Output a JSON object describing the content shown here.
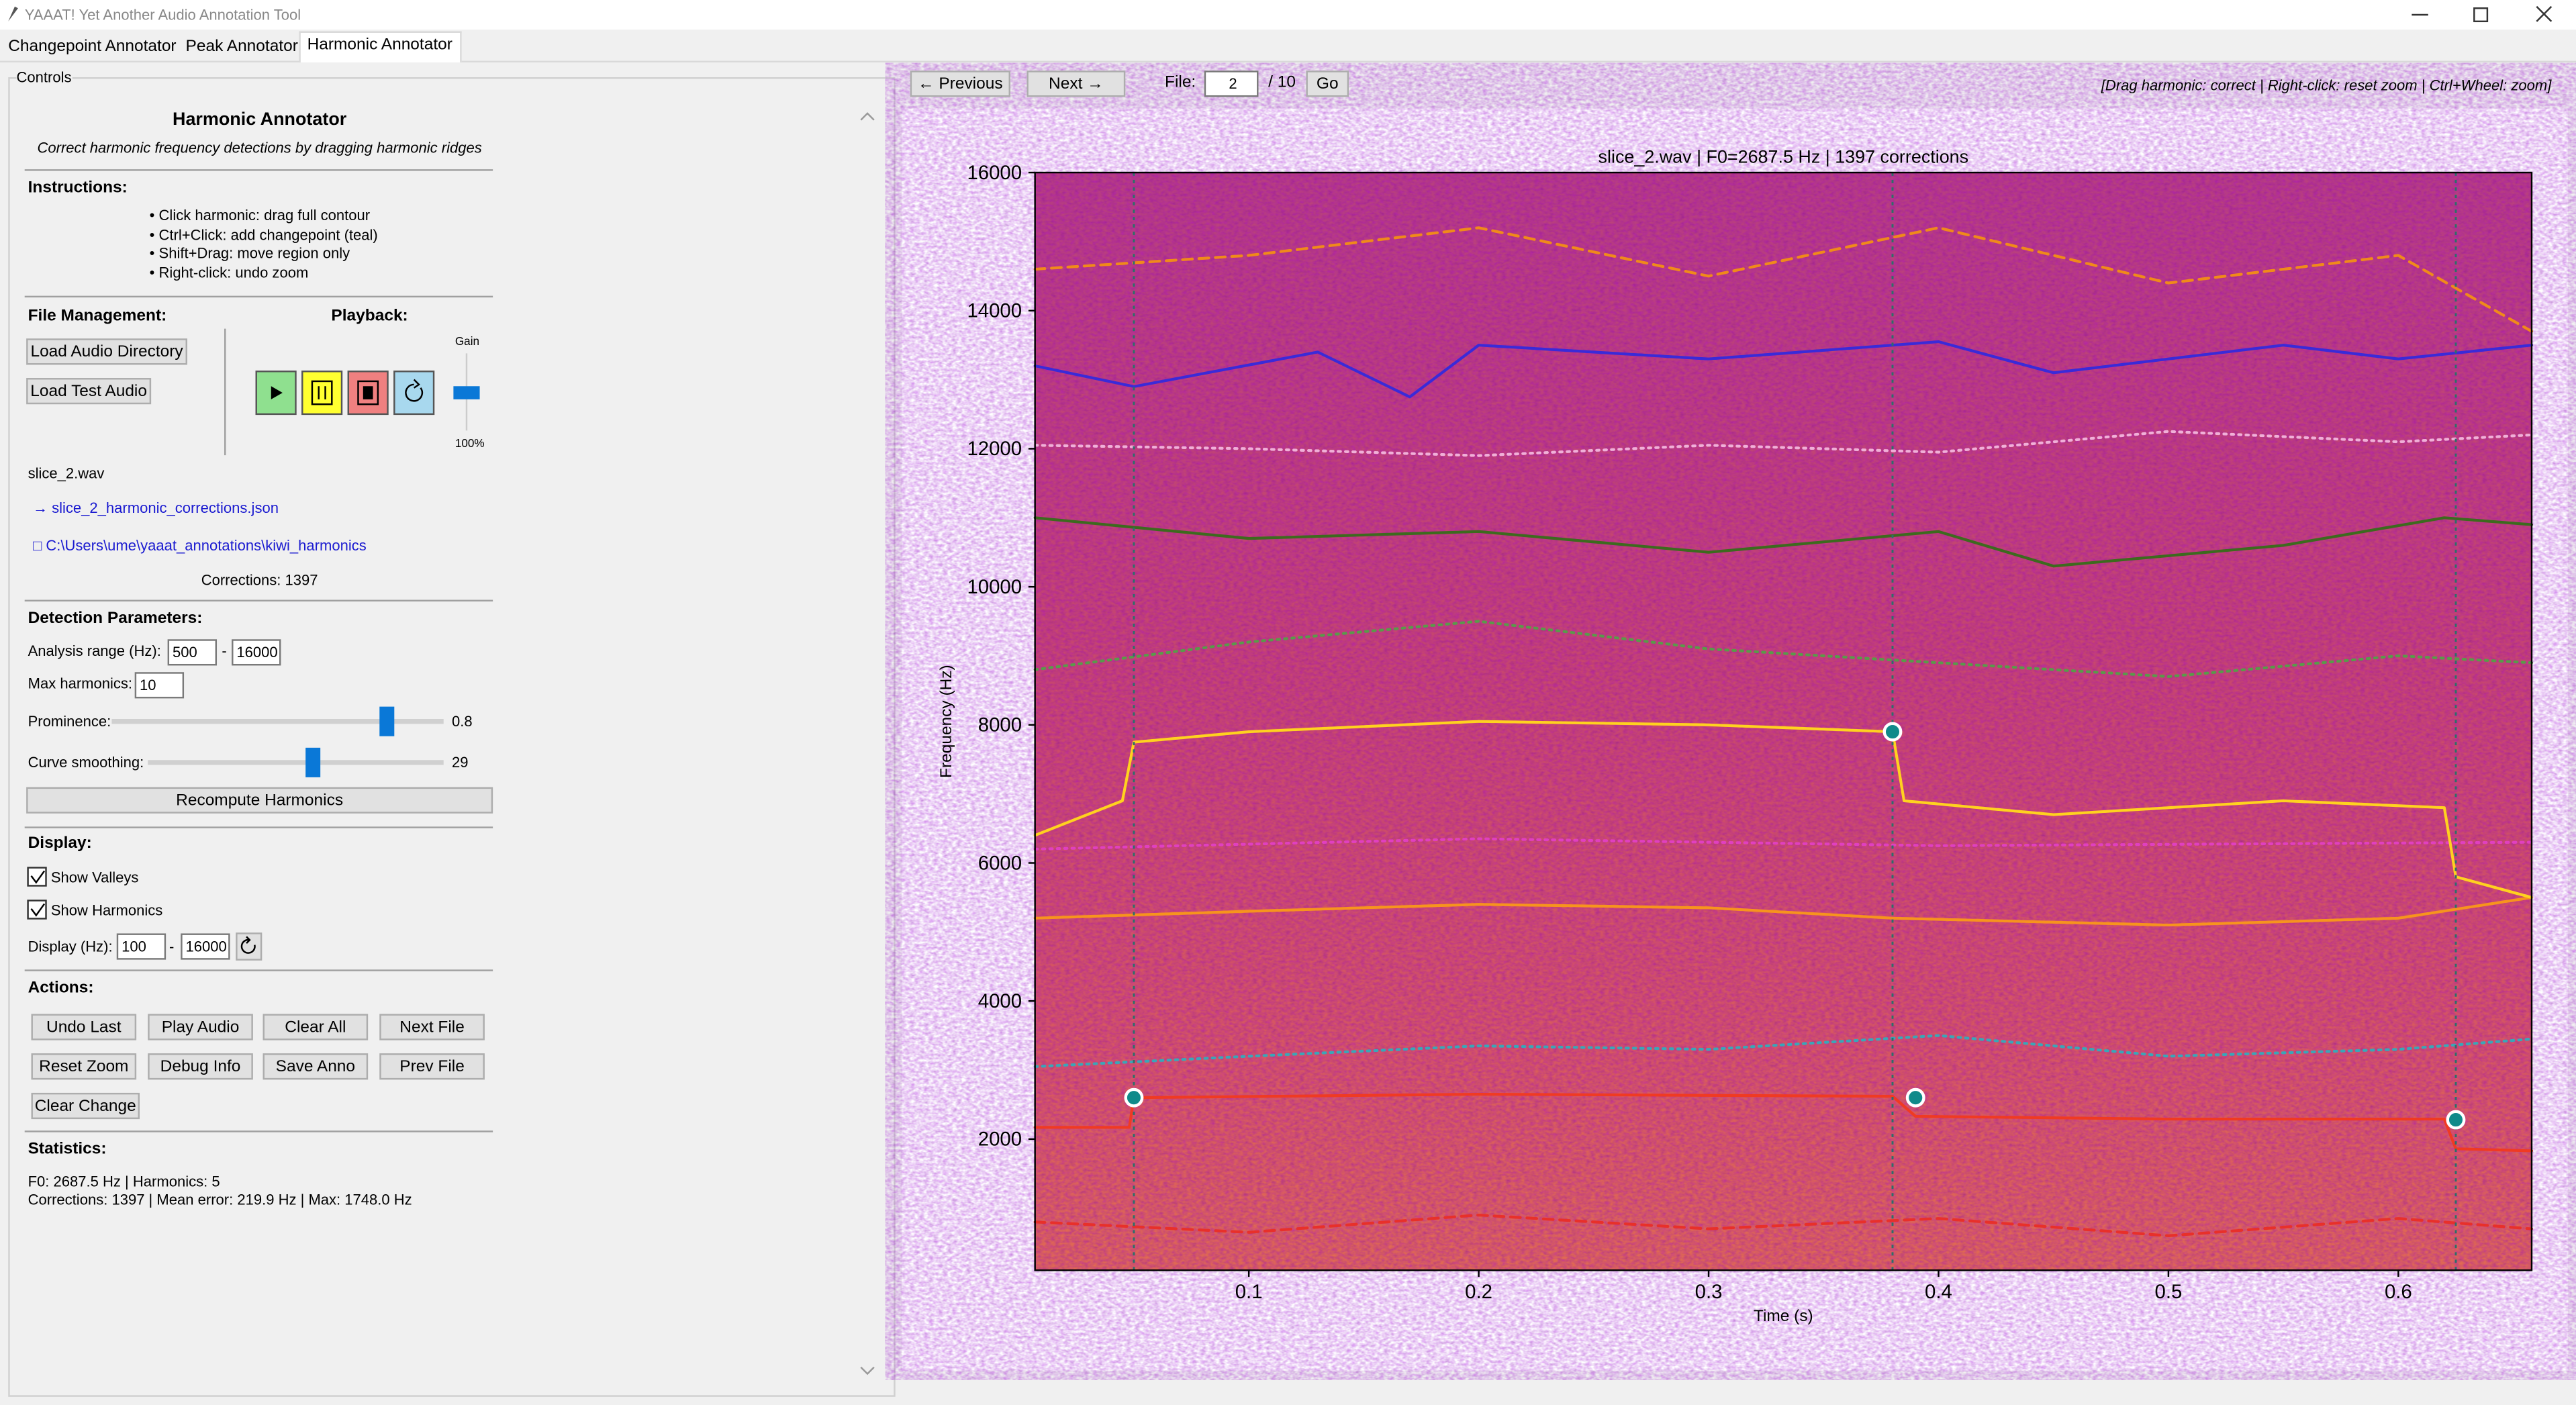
{
  "window": {
    "title": "YAAAT! Yet Another Audio Annotation Tool"
  },
  "tabs": [
    "Changepoint Annotator",
    "Peak Annotator",
    "Harmonic Annotator"
  ],
  "controls": {
    "group_label": "Controls",
    "title": "Harmonic Annotator",
    "subtitle": "Correct harmonic frequency detections by dragging harmonic ridges",
    "instructions_label": "Instructions:",
    "instructions": [
      "• Click harmonic: drag full contour",
      "• Ctrl+Click: add changepoint (teal)",
      "• Shift+Drag: move region only",
      "• Right-click: undo zoom"
    ],
    "file_management_label": "File Management:",
    "load_dir": "Load Audio Directory",
    "load_test": "Load Test Audio",
    "playback_label": "Playback:",
    "gain_label": "Gain",
    "gain_value": "100%",
    "current_file": "slice_2.wav",
    "output_file": "→ slice_2_harmonic_corrections.json",
    "output_dir": "□ C:\\Users\\ume\\yaaat_annotations\\kiwi_harmonics",
    "corrections": "Corrections: 1397",
    "detection_label": "Detection Parameters:",
    "analysis_range_label": "Analysis range (Hz):",
    "analysis_min": "500",
    "range_dash": "-",
    "analysis_max": "16000",
    "max_harmonics_label": "Max harmonics:",
    "max_harmonics": "10",
    "prominence_label": "Prominence:",
    "prominence": "0.8",
    "smoothing_label": "Curve smoothing:",
    "smoothing": "29",
    "recompute": "Recompute Harmonics",
    "display_label": "Display:",
    "show_valleys": "Show Valleys",
    "show_harmonics": "Show Harmonics",
    "display_range_label": "Display (Hz):",
    "display_min": "100",
    "display_max": "16000",
    "actions_label": "Actions:",
    "actions": [
      "Undo Last",
      "Play Audio",
      "Clear All",
      "Next File",
      "Reset Zoom",
      "Debug Info",
      "Save Anno",
      "Prev File",
      "Clear Change"
    ],
    "statistics_label": "Statistics:",
    "stats": [
      "F0: 2687.5 Hz | Harmonics: 5",
      "Corrections: 1397 | Mean error: 219.9 Hz | Max: 1748.0 Hz"
    ]
  },
  "toolbar": {
    "previous": "← Previous",
    "next": "Next →",
    "file_label": "File:",
    "file_index": "2",
    "file_total": "/ 10",
    "go": "Go",
    "hint": "[Drag harmonic: correct | Right-click: reset zoom | Ctrl+Wheel: zoom]"
  },
  "chart_data": {
    "type": "line",
    "title": "slice_2.wav | F0=2687.5 Hz | 1397 corrections",
    "xlabel": "Time (s)",
    "ylabel": "Frequency (Hz)",
    "xlim": [
      0.007,
      0.658
    ],
    "ylim": [
      100,
      16000
    ],
    "xticks": [
      0.1,
      0.2,
      0.3,
      0.4,
      0.5,
      0.6
    ],
    "yticks": [
      2000,
      4000,
      6000,
      8000,
      10000,
      12000,
      14000,
      16000
    ],
    "series": [
      {
        "color": "#f03a22",
        "style": "solid",
        "x": [
          0.007,
          0.048,
          0.05,
          0.2,
          0.38,
          0.39,
          0.5,
          0.62,
          0.625,
          0.658
        ],
        "values": [
          2170,
          2170,
          2600,
          2650,
          2620,
          2330,
          2290,
          2290,
          1860,
          1830
        ]
      },
      {
        "color": "#e8302a",
        "style": "dashed",
        "x": [
          0.007,
          0.1,
          0.2,
          0.3,
          0.4,
          0.5,
          0.6,
          0.658
        ],
        "values": [
          800,
          650,
          900,
          700,
          850,
          600,
          850,
          700
        ]
      },
      {
        "color": "#3aa6b8",
        "style": "dotted",
        "x": [
          0.007,
          0.1,
          0.2,
          0.3,
          0.4,
          0.5,
          0.6,
          0.658
        ],
        "values": [
          3050,
          3200,
          3350,
          3300,
          3500,
          3200,
          3300,
          3450
        ]
      },
      {
        "color": "#f7941d",
        "style": "solid",
        "x": [
          0.007,
          0.1,
          0.2,
          0.3,
          0.38,
          0.5,
          0.6,
          0.658
        ],
        "values": [
          5200,
          5300,
          5400,
          5350,
          5200,
          5100,
          5200,
          5500
        ]
      },
      {
        "color": "#e040c0",
        "style": "dotted",
        "x": [
          0.007,
          0.2,
          0.4,
          0.658
        ],
        "values": [
          6200,
          6350,
          6250,
          6300
        ]
      },
      {
        "color": "#ffd21f",
        "style": "solid",
        "x": [
          0.007,
          0.045,
          0.05,
          0.1,
          0.2,
          0.3,
          0.38,
          0.385,
          0.45,
          0.55,
          0.62,
          0.625,
          0.658
        ],
        "values": [
          6400,
          6900,
          7750,
          7900,
          8050,
          8000,
          7900,
          6900,
          6700,
          6900,
          6800,
          5800,
          5500
        ]
      },
      {
        "color": "#5a9a4a",
        "style": "dotted",
        "x": [
          0.007,
          0.1,
          0.2,
          0.3,
          0.4,
          0.5,
          0.6,
          0.658
        ],
        "values": [
          8800,
          9200,
          9500,
          9100,
          8900,
          8700,
          9000,
          8900
        ]
      },
      {
        "color": "#3d6a1e",
        "style": "solid",
        "x": [
          0.007,
          0.1,
          0.2,
          0.3,
          0.4,
          0.45,
          0.55,
          0.62,
          0.658
        ],
        "values": [
          11000,
          10700,
          10800,
          10500,
          10800,
          10300,
          10600,
          11000,
          10900
        ]
      },
      {
        "color": "#f0b0d8",
        "style": "dotted",
        "x": [
          0.007,
          0.1,
          0.2,
          0.3,
          0.4,
          0.5,
          0.6,
          0.658
        ],
        "values": [
          12050,
          12000,
          11900,
          12050,
          11950,
          12250,
          12100,
          12200
        ]
      },
      {
        "color": "#3a2ad8",
        "style": "solid",
        "x": [
          0.007,
          0.05,
          0.13,
          0.17,
          0.2,
          0.3,
          0.4,
          0.45,
          0.55,
          0.6,
          0.658
        ],
        "values": [
          13200,
          12900,
          13400,
          12750,
          13500,
          13300,
          13550,
          13100,
          13500,
          13300,
          13500
        ]
      },
      {
        "color": "#f08a1a",
        "style": "dashed",
        "x": [
          0.007,
          0.1,
          0.2,
          0.3,
          0.4,
          0.5,
          0.6,
          0.658
        ],
        "values": [
          14600,
          14800,
          15200,
          14500,
          15200,
          14400,
          14800,
          13700
        ]
      }
    ],
    "changepoints": [
      0.05,
      0.38,
      0.625
    ],
    "changepoint_color": "#2e6e6a",
    "markers": {
      "x": [
        0.05,
        0.38,
        0.39,
        0.625
      ],
      "y": [
        2600,
        7900,
        2600,
        2280
      ]
    },
    "marker_color": "#0f8a8a"
  }
}
